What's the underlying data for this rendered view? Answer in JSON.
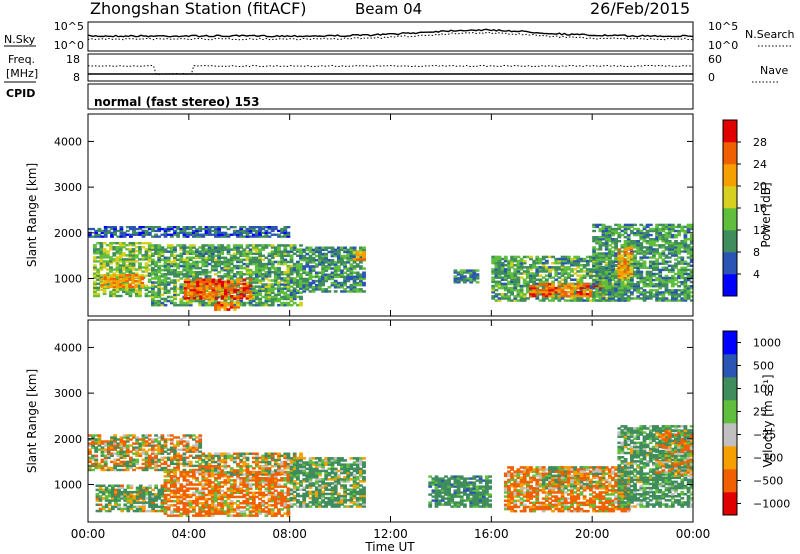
{
  "header": {
    "station": "Zhongshan Station (fitACF)",
    "beam": "Beam 04",
    "date": "26/Feb/2015"
  },
  "noise_panel": {
    "left_label": "N.Sky",
    "right_label": "N.Search",
    "left_ticks": [
      "10^5",
      "10^0"
    ],
    "right_ticks": [
      "10^5",
      "10^0"
    ]
  },
  "freq_panel": {
    "left_label_line1": "Freq.",
    "left_label_line2": "[MHz]",
    "right_label": "Nave",
    "left_ticks": [
      "18",
      "8"
    ],
    "right_ticks": [
      "60",
      "0"
    ]
  },
  "cpid_panel": {
    "label": "CPID",
    "text": "normal (fast stereo) 153"
  },
  "colors": {
    "power": [
      "#0000ff",
      "#2b55b5",
      "#3f8c5c",
      "#5fbf3c",
      "#d8d020",
      "#f5a000",
      "#f06000",
      "#e00000"
    ],
    "velocity": [
      "#e00000",
      "#f06000",
      "#f5a000",
      "#c0c0c0",
      "#5fbf3c",
      "#3f8c5c",
      "#2b55b5",
      "#0000ff"
    ]
  },
  "chart_data": [
    {
      "type": "heatmap",
      "panel": "power",
      "ylabel": "Slant Range [km]",
      "ylim": [
        180,
        4600
      ],
      "yticks": [
        "4000",
        "3000",
        "2000",
        "1000"
      ],
      "colorbar": {
        "label": "Power [dB]",
        "ticks": [
          "28",
          "24",
          "20",
          "16",
          "12",
          "8",
          "4"
        ],
        "range": [
          0,
          32
        ]
      },
      "regions": [
        {
          "t0": 0.2,
          "t1": 2.5,
          "r0": 600,
          "r1": 1800,
          "v": 14
        },
        {
          "t0": 0.5,
          "t1": 2.2,
          "r0": 800,
          "r1": 1100,
          "v": 22
        },
        {
          "t0": 2.5,
          "t1": 8.5,
          "r0": 400,
          "r1": 1750,
          "v": 12
        },
        {
          "t0": 3.8,
          "t1": 6.5,
          "r0": 550,
          "r1": 1000,
          "v": 26
        },
        {
          "t0": 5.0,
          "t1": 6.0,
          "r0": 300,
          "r1": 500,
          "v": 24
        },
        {
          "t0": 8.5,
          "t1": 11.0,
          "r0": 700,
          "r1": 1700,
          "v": 10
        },
        {
          "t0": 10.5,
          "t1": 11.0,
          "r0": 1400,
          "r1": 1600,
          "v": 22
        },
        {
          "t0": 0.0,
          "t1": 8.0,
          "r0": 1900,
          "r1": 2150,
          "v": 7
        },
        {
          "t0": 14.5,
          "t1": 15.5,
          "r0": 900,
          "r1": 1200,
          "v": 9
        },
        {
          "t0": 16.0,
          "t1": 21.5,
          "r0": 500,
          "r1": 1500,
          "v": 12
        },
        {
          "t0": 17.5,
          "t1": 20.5,
          "r0": 600,
          "r1": 900,
          "v": 26
        },
        {
          "t0": 20.0,
          "t1": 24.0,
          "r0": 500,
          "r1": 2200,
          "v": 11
        },
        {
          "t0": 21.0,
          "t1": 21.6,
          "r0": 1000,
          "r1": 1700,
          "v": 22
        }
      ]
    },
    {
      "type": "heatmap",
      "panel": "velocity",
      "ylabel": "Slant Range [km]",
      "ylim": [
        180,
        4600
      ],
      "yticks": [
        "4000",
        "3000",
        "2000",
        "1000"
      ],
      "colorbar": {
        "label": "Velocity [m s⁻¹]",
        "ticks": [
          "1000",
          "500",
          "100",
          "25",
          "−25",
          "−100",
          "−500",
          "−1000"
        ],
        "range": [
          -1200,
          1200
        ]
      },
      "regions": [
        {
          "t0": 0.0,
          "t1": 4.5,
          "r0": 1300,
          "r1": 2100,
          "v": 0
        },
        {
          "t0": 0.3,
          "t1": 3.0,
          "r0": 400,
          "r1": 1000,
          "v": 120
        },
        {
          "t0": 3.0,
          "t1": 8.0,
          "r0": 300,
          "r1": 1300,
          "v": -150
        },
        {
          "t0": 4.5,
          "t1": 8.5,
          "r0": 1200,
          "r1": 1700,
          "v": 0
        },
        {
          "t0": 8.0,
          "t1": 11.0,
          "r0": 500,
          "r1": 1600,
          "v": 150
        },
        {
          "t0": 13.5,
          "t1": 16.0,
          "r0": 500,
          "r1": 1200,
          "v": 300
        },
        {
          "t0": 16.5,
          "t1": 21.5,
          "r0": 400,
          "r1": 1400,
          "v": -150
        },
        {
          "t0": 18.0,
          "t1": 20.5,
          "r0": 900,
          "r1": 1400,
          "v": 0
        },
        {
          "t0": 21.0,
          "t1": 24.0,
          "r0": 500,
          "r1": 2300,
          "v": 200
        },
        {
          "t0": 22.5,
          "t1": 24.0,
          "r0": 1200,
          "r1": 2200,
          "v": 0
        }
      ]
    }
  ],
  "xaxis": {
    "label": "Time UT",
    "ticks": [
      "00:00",
      "04:00",
      "08:00",
      "12:00",
      "16:00",
      "20:00",
      "00:00"
    ]
  }
}
